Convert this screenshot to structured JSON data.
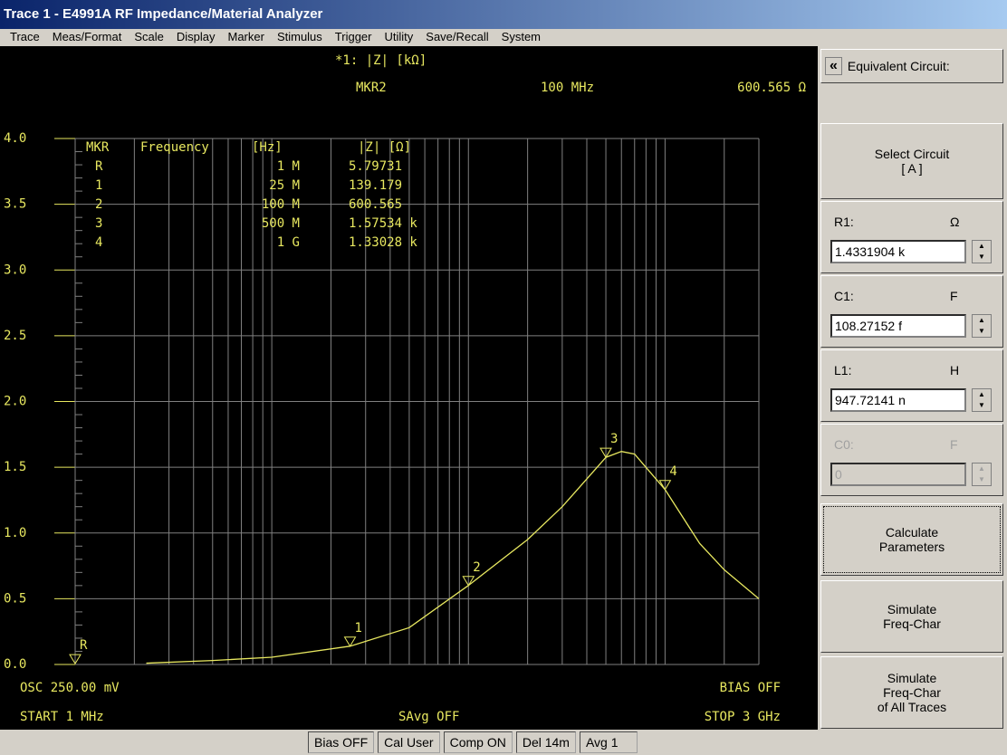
{
  "window": {
    "title": "Trace 1 - E4991A RF Impedance/Material Analyzer"
  },
  "menu": [
    "Trace",
    "Meas/Format",
    "Scale",
    "Display",
    "Marker",
    "Stimulus",
    "Trigger",
    "Utility",
    "Save/Recall",
    "System"
  ],
  "chart_data": {
    "type": "line",
    "title": "*1: |Z| [kΩ]",
    "readout": {
      "marker": "MKR2",
      "frequency": "100 MHz",
      "value": "600.565 Ω"
    },
    "xscale": "log",
    "xlim": [
      1,
      3000
    ],
    "xgrid": [
      1,
      2,
      3,
      4,
      5,
      6,
      7,
      8,
      9,
      10,
      20,
      30,
      40,
      50,
      60,
      70,
      80,
      90,
      100,
      200,
      300,
      400,
      500,
      600,
      700,
      800,
      900,
      1000,
      2000,
      3000
    ],
    "ylim": [
      0,
      4
    ],
    "yticks": [
      {
        "value": 0,
        "label": "0.0"
      },
      {
        "value": 0.5,
        "label": "0.5"
      },
      {
        "value": 1,
        "label": "1.0"
      },
      {
        "value": 1.5,
        "label": "1.5"
      },
      {
        "value": 2,
        "label": "2.0"
      },
      {
        "value": 2.5,
        "label": "2.5"
      },
      {
        "value": 3,
        "label": "3.0"
      },
      {
        "value": 3.5,
        "label": "3.5"
      },
      {
        "value": 4,
        "label": "4.0"
      }
    ],
    "grid": true,
    "series": [
      {
        "color": "#e8e860",
        "x": [
          2.3,
          5,
          10,
          25,
          50,
          100,
          200,
          300,
          500,
          600,
          700,
          1000,
          1500,
          2000,
          3000
        ],
        "values": [
          0.01,
          0.03,
          0.055,
          0.139,
          0.28,
          0.601,
          0.95,
          1.2,
          1.575,
          1.62,
          1.6,
          1.33,
          0.92,
          0.72,
          0.5
        ]
      }
    ],
    "marker_table": {
      "header": [
        "MKR",
        "Frequency",
        "[Hz]",
        "|Z| [Ω]"
      ],
      "markers": [
        {
          "label": "R",
          "frequency": "1 M",
          "value_label": "5.79731",
          "x": 1,
          "y": 0.00579731
        },
        {
          "label": "1",
          "frequency": "25 M",
          "value_label": "139.179",
          "x": 25,
          "y": 0.139179
        },
        {
          "label": "2",
          "frequency": "100 M",
          "value_label": "600.565",
          "x": 100,
          "y": 0.600565
        },
        {
          "label": "3",
          "frequency": "500 M",
          "value_label": "1.57534 k",
          "x": 500,
          "y": 1.57534
        },
        {
          "label": "4",
          "frequency": "1 G",
          "value_label": "1.33028 k",
          "x": 1000,
          "y": 1.33028
        }
      ]
    },
    "footer": {
      "osc": "OSC 250.00 mV",
      "bias": "BIAS OFF",
      "start": "START  1 MHz",
      "savg": "SAvg OFF",
      "stop": "STOP  3 GHz"
    }
  },
  "panel": {
    "collapse": "«",
    "heading": "Equivalent Circuit:",
    "select": [
      "Select Circuit",
      "[ A ]"
    ],
    "params": [
      {
        "name": "R1:",
        "unit": "Ω",
        "value": "1.4331904 k"
      },
      {
        "name": "C1:",
        "unit": "F",
        "value": "108.27152 f"
      },
      {
        "name": "L1:",
        "unit": "H",
        "value": "947.72141 n"
      },
      {
        "name": "C0:",
        "unit": "F",
        "value": "0"
      }
    ],
    "calculate": [
      "Calculate",
      "Parameters"
    ],
    "simulate": [
      "Simulate",
      "Freq-Char"
    ],
    "simulate_all": [
      "Simulate",
      "Freq-Char",
      "of All Traces"
    ]
  },
  "status": [
    "Bias OFF",
    "Cal User",
    "Comp ON",
    "Del 14m",
    "Avg  1"
  ]
}
